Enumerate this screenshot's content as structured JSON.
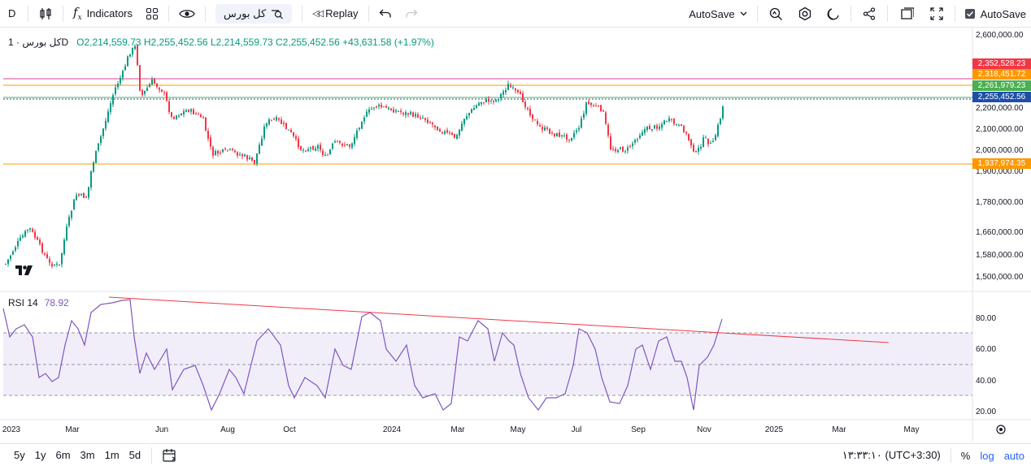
{
  "toolbar": {
    "symbol_short": "D",
    "indicators_label": "Indicators",
    "search_symbol": "کل بورس",
    "replay_label": "Replay",
    "autosave_dropdown": "AutoSave",
    "autosave_label": "AutoSave"
  },
  "legend": {
    "symbol": "کل بورس · 1D",
    "ohlc": "O2,214,559.73 H2,255,452.56 L2,214,559.73 C2,255,452.56 +43,631.58 (+1.97%)"
  },
  "rsi": {
    "label": "RSI 14",
    "value": "78.92"
  },
  "price_axis": {
    "ticks": [
      "2,600,000.00",
      "2,200,000.00",
      "2,100,000.00",
      "2,000,000.00",
      "1,900,000.00",
      "1,780,000.00",
      "1,660,000.00",
      "1,580,000.00",
      "1,500,000.00"
    ],
    "tags": [
      {
        "label": "2,352,528.23",
        "color": "#f23645"
      },
      {
        "label": "2,318,451.72",
        "color": "#ff9800"
      },
      {
        "label": "2,261,979.23",
        "color": "#4caf50"
      },
      {
        "label": "2,255,452.56",
        "color": "#1e4fa8"
      },
      {
        "label": "1,937,974.35",
        "color": "#ff9800"
      }
    ]
  },
  "rsi_axis": {
    "ticks": [
      "80.00",
      "60.00",
      "40.00",
      "20.00"
    ]
  },
  "time_axis": {
    "labels": [
      "2023",
      "Mar",
      "Jun",
      "Aug",
      "Oct",
      "2024",
      "Mar",
      "May",
      "Jul",
      "Sep",
      "Nov",
      "2025",
      "Mar",
      "May"
    ]
  },
  "bottombar": {
    "ranges": [
      "5y",
      "1y",
      "6m",
      "3m",
      "1m",
      "5d"
    ],
    "clock": "۱۳:۳۳:۱۰ (UTC+3:30)",
    "percent": "%",
    "log": "log",
    "auto": "auto"
  },
  "colors": {
    "up": "#089981",
    "down": "#f23645",
    "rsi_line": "#7e57c2",
    "rsi_band": "#ede7f6",
    "trendline": "#f23645"
  }
}
